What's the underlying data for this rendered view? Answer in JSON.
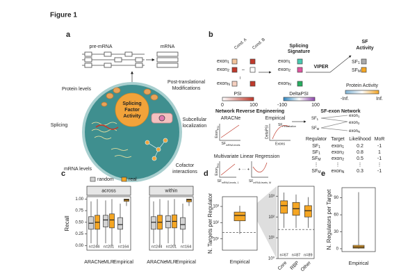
{
  "figure_title": "Figure 1",
  "panel_a": {
    "label": "a",
    "pre_mrna": "pre-mRNA",
    "mrna": "mRNA",
    "center": [
      "Splicing",
      "Factor",
      "Activity"
    ],
    "factors": [
      [
        "Protein levels"
      ],
      [
        "Post-translational",
        "Modifications"
      ],
      [
        "Splicing"
      ],
      [
        "Subcellular",
        "localization"
      ],
      [
        "mRNA levels"
      ],
      [
        "Cofactor",
        "interactions"
      ]
    ]
  },
  "panel_b": {
    "label": "b",
    "cond_a": "Cond. A",
    "cond_b": "Cond. B",
    "minus": "–",
    "exons": [
      {
        "text": "exon",
        "sub": "1"
      },
      {
        "text": "exon",
        "sub": "2"
      },
      {
        "text": "exon",
        "sub": "N"
      }
    ],
    "signature": [
      "Splicing",
      "Signature"
    ],
    "psi": "PSI",
    "psi_range": [
      "0",
      "100"
    ],
    "delta_psi": "DeltaPSI",
    "delta_range": [
      "-100",
      "100"
    ],
    "viper": "VIPER",
    "activity": [
      "SF",
      "Activity"
    ],
    "sfs": [
      {
        "text": "SF",
        "sub": "1"
      },
      {
        "text": "SF",
        "sub": "M"
      }
    ],
    "protein_activity": "Protein Activity",
    "activity_range": [
      "-Inf.",
      "Inf."
    ],
    "nre": "Network Reverse Engineering",
    "aracne": "ARACNe",
    "empirical": "Empirical",
    "aracne_axes": [
      {
        "text": "Exon",
        "sub": "PSI"
      },
      {
        "text": "SF",
        "sub": "mRNA levels"
      }
    ],
    "empirical_axes": [
      {
        "text": "SF",
        "sub": "Perturbation"
      },
      "DeltaPSI",
      "Exons"
    ],
    "mlr": "Multivariate Linear Regression",
    "mlr_axes": [
      {
        "text": "Exon",
        "sub": "PSI"
      },
      {
        "text": "SF",
        "sub": "mRNA levels, 1"
      },
      {
        "text": "SF",
        "sub": "mRNA levels, M"
      }
    ],
    "mlr_ops": "+ ··· +",
    "network": "SF-exon Network",
    "network_nodes": [
      {
        "text": "SF",
        "sub": "1"
      },
      {
        "text": "SF",
        "sub": "M"
      },
      {
        "text": "exon",
        "sub": "1"
      },
      {
        "text": "exon",
        "sub": "2"
      },
      {
        "text": "exon",
        "sub": "N"
      }
    ],
    "table": {
      "header": [
        "Regulator",
        "Target",
        "Likelihood",
        "MoR"
      ],
      "rows": [
        [
          {
            "text": "SF",
            "sub": "1"
          },
          {
            "text": "exon",
            "sub": "1"
          },
          0.2,
          -1
        ],
        [
          {
            "text": "SF",
            "sub": "1"
          },
          {
            "text": "exon",
            "sub": "2"
          },
          0.8,
          1
        ],
        [
          {
            "text": "SF",
            "sub": "M"
          },
          {
            "text": "exon",
            "sub": "2"
          },
          0.5,
          -1
        ],
        [
          "⋮",
          "⋮",
          "⋮",
          "⋮"
        ],
        [
          {
            "text": "SF",
            "sub": "M"
          },
          {
            "text": "exon",
            "sub": "N"
          },
          0.3,
          -1
        ]
      ]
    }
  },
  "chart_data": [
    {
      "type": "box",
      "label": "c",
      "ylabel": "Recall",
      "ylim": [
        -0.1,
        1.05
      ],
      "yticks": [
        {
          "value": 0,
          "label": "0.00"
        },
        {
          "value": 0.25,
          "label": "0.25"
        },
        {
          "value": 0.5,
          "label": "0.50"
        },
        {
          "value": 0.75,
          "label": "0.75"
        },
        {
          "value": 1,
          "label": "1.00"
        }
      ],
      "series": [
        {
          "name": "random",
          "color": "#d3d3d3"
        },
        {
          "name": "real",
          "color": "#f5a623"
        }
      ],
      "categories": [
        "ARACNe",
        "MLR",
        "Empirical"
      ],
      "n_labels": [
        "n=244",
        "n=201",
        "n=164"
      ],
      "facets": [
        {
          "name": "across",
          "boxes": [
            [
              [
                0.05,
                0.35,
                0.48,
                0.62,
                0.95
              ],
              [
                0.05,
                0.4,
                0.55,
                0.65,
                0.97
              ],
              [
                0.05,
                0.35,
                0.45,
                0.6,
                0.9
              ]
            ],
            [
              [
                0,
                0.35,
                0.5,
                0.65,
                1
              ],
              [
                0,
                0.38,
                0.55,
                0.68,
                1
              ],
              [
                0.85,
                0.95,
                0.98,
                1,
                1
              ]
            ]
          ]
        },
        {
          "name": "within",
          "boxes": [
            [
              [
                0.05,
                0.35,
                0.5,
                0.62,
                0.95
              ],
              [
                0.05,
                0.38,
                0.52,
                0.64,
                0.97
              ],
              [
                0.05,
                0.35,
                0.45,
                0.6,
                0.9
              ]
            ],
            [
              [
                0,
                0.35,
                0.5,
                0.65,
                1
              ],
              [
                0,
                0.38,
                0.52,
                0.66,
                1
              ],
              [
                0.85,
                0.94,
                0.98,
                1,
                1
              ]
            ]
          ]
        }
      ]
    },
    {
      "type": "box",
      "label": "d",
      "ylabel": "N. Targets per Regulator",
      "log": true,
      "ylim": [
        2,
        4000
      ],
      "yticks": [
        {
          "value": 10,
          "label": "10¹"
        },
        {
          "value": 100,
          "label": "10²"
        },
        {
          "value": 1000,
          "label": "10³"
        }
      ],
      "categories": [
        "Empirical"
      ],
      "color": "#f5a623",
      "boxes": [
        [
          20,
          130,
          280,
          450,
          1100
        ]
      ],
      "hline": 25
    },
    {
      "type": "box",
      "log": true,
      "ylim": [
        1,
        3000
      ],
      "yticks": [
        {
          "value": 1,
          "label": "10⁰"
        },
        {
          "value": 10,
          "label": "10¹"
        },
        {
          "value": 100,
          "label": "10²"
        },
        {
          "value": 1000,
          "label": "10³"
        }
      ],
      "categories": [
        "Core",
        "RBP",
        "Other"
      ],
      "color": "#f5a623",
      "n_labels": [
        "n=67",
        "n=87",
        "n=89"
      ],
      "boxes": [
        [
          30,
          150,
          350,
          600,
          1500
        ],
        [
          30,
          120,
          250,
          500,
          1200
        ],
        [
          30,
          100,
          200,
          350,
          900
        ]
      ],
      "hline": 25
    },
    {
      "type": "box",
      "label": "e",
      "ylabel": "N. Regulators per Target",
      "ylim": [
        -5,
        108
      ],
      "yticks": [
        0,
        30,
        60,
        90
      ],
      "categories": [
        "Empirical"
      ],
      "color": "#f5a623",
      "boxes": [
        [
          0,
          1,
          3,
          6,
          100
        ]
      ]
    }
  ]
}
